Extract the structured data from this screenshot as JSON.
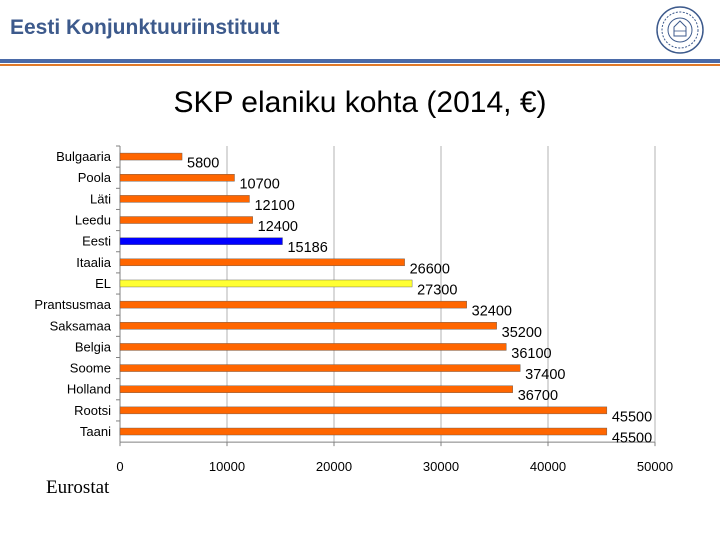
{
  "header": {
    "title": "Eesti Konjunktuuriinstituut"
  },
  "source": "Eurostat",
  "colors": {
    "default": "#ff6600",
    "highlight_estonia": "#0000ff",
    "highlight_eu": "#ffff33"
  },
  "chart_data": {
    "type": "bar",
    "orientation": "horizontal",
    "title": "SKP elaniku kohta (2014, €)",
    "categories": [
      "Bulgaaria",
      "Poola",
      "Läti",
      "Leedu",
      "Eesti",
      "Itaalia",
      "EL",
      "Prantsusmaa",
      "Saksamaa",
      "Belgia",
      "Soome",
      "Holland",
      "Rootsi",
      "Taani"
    ],
    "values": [
      5800,
      10700,
      12100,
      12400,
      15186,
      26600,
      27300,
      32400,
      35200,
      36100,
      37400,
      36700,
      45500,
      45500
    ],
    "value_labels": [
      "5800",
      "10700",
      "12100",
      "12400",
      "15186",
      "26600",
      "27300",
      "32400",
      "35200",
      "36100",
      "37400",
      "36700",
      "45500",
      "45500"
    ],
    "bar_colors": [
      "default",
      "default",
      "default",
      "default",
      "highlight_estonia",
      "default",
      "highlight_eu",
      "default",
      "default",
      "default",
      "default",
      "default",
      "default",
      "default"
    ],
    "xlim": [
      0,
      50000
    ],
    "xticks": [
      "0",
      "10000",
      "20000",
      "30000",
      "40000",
      "50000"
    ],
    "grid": true
  }
}
